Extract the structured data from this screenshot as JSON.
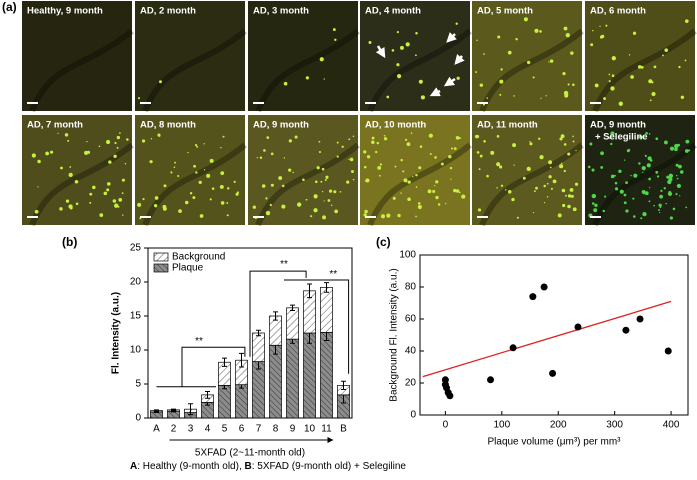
{
  "panel_labels": [
    "(a)",
    "(b)",
    "(c)"
  ],
  "images": [
    {
      "label": "Healthy, 9 month"
    },
    {
      "label": "AD, 2 month"
    },
    {
      "label": "AD, 3 month"
    },
    {
      "label": "AD, 4 month"
    },
    {
      "label": "AD, 5 month"
    },
    {
      "label": "AD, 6 month"
    },
    {
      "label": "AD, 7 month"
    },
    {
      "label": "AD, 8 month"
    },
    {
      "label": "AD, 9 month"
    },
    {
      "label": "AD, 10 month"
    },
    {
      "label": "AD, 11 month"
    },
    {
      "label": "AD, 9 month",
      "sublabel": "+ Selegiline"
    }
  ],
  "chart_data": [
    {
      "type": "bar",
      "stacked": true,
      "ylabel": "Fl. Intensity (a.u.)",
      "xlabel": "5XFAD (2~11-month old)",
      "categories": [
        "A",
        "2",
        "3",
        "4",
        "5",
        "6",
        "7",
        "8",
        "9",
        "10",
        "11",
        "B"
      ],
      "series": [
        {
          "name": "Plaque",
          "color": "#8c8c8c",
          "values": [
            0.9,
            1.0,
            0.8,
            2.3,
            4.8,
            4.9,
            8.3,
            10.7,
            11.6,
            12.5,
            12.6,
            3.4
          ],
          "errors": [
            0.1,
            0.1,
            0.3,
            0.4,
            0.5,
            0.5,
            1.1,
            1.3,
            0.6,
            1.5,
            1.2,
            1.2
          ]
        },
        {
          "name": "Background",
          "color": "#ffffff",
          "values": [
            0.2,
            0.2,
            0.5,
            1.1,
            3.4,
            3.6,
            4.2,
            4.3,
            4.6,
            6.2,
            6.6,
            1.4
          ],
          "errors": [
            0.1,
            0.1,
            0.8,
            0.5,
            0.6,
            1.0,
            0.4,
            0.6,
            0.4,
            1.0,
            0.7,
            0.6
          ]
        }
      ],
      "annotations": [
        {
          "text": "**"
        },
        {
          "text": "**"
        },
        {
          "text": "**"
        }
      ],
      "ylim": [
        0,
        25
      ],
      "yticks": [
        0,
        5,
        10,
        15,
        20,
        25
      ],
      "legend": "top-left"
    },
    {
      "type": "scatter",
      "xlabel": "Plaque volume (μm³) per mm³",
      "ylabel": "Background Fl. Intensity (a.u.)",
      "x": [
        0,
        0,
        2,
        5,
        8,
        80,
        120,
        155,
        175,
        190,
        235,
        320,
        345,
        395
      ],
      "y": [
        22,
        19,
        17,
        14,
        12,
        22,
        42,
        74,
        80,
        26,
        55,
        53,
        60,
        40
      ],
      "color": "#000000",
      "fit_line": {
        "x": [
          -40,
          400
        ],
        "y": [
          24,
          71
        ],
        "color": "#e02020"
      },
      "xlim": [
        -45,
        430
      ],
      "xticks": [
        0,
        100,
        200,
        300,
        400
      ],
      "ylim": [
        0,
        100
      ],
      "yticks": [
        0,
        20,
        40,
        60,
        80,
        100
      ]
    }
  ],
  "caption": [
    "A",
    ": Healthy (9-month old), ",
    "B",
    ": 5XFAD (9-month old) + Selegiline"
  ]
}
